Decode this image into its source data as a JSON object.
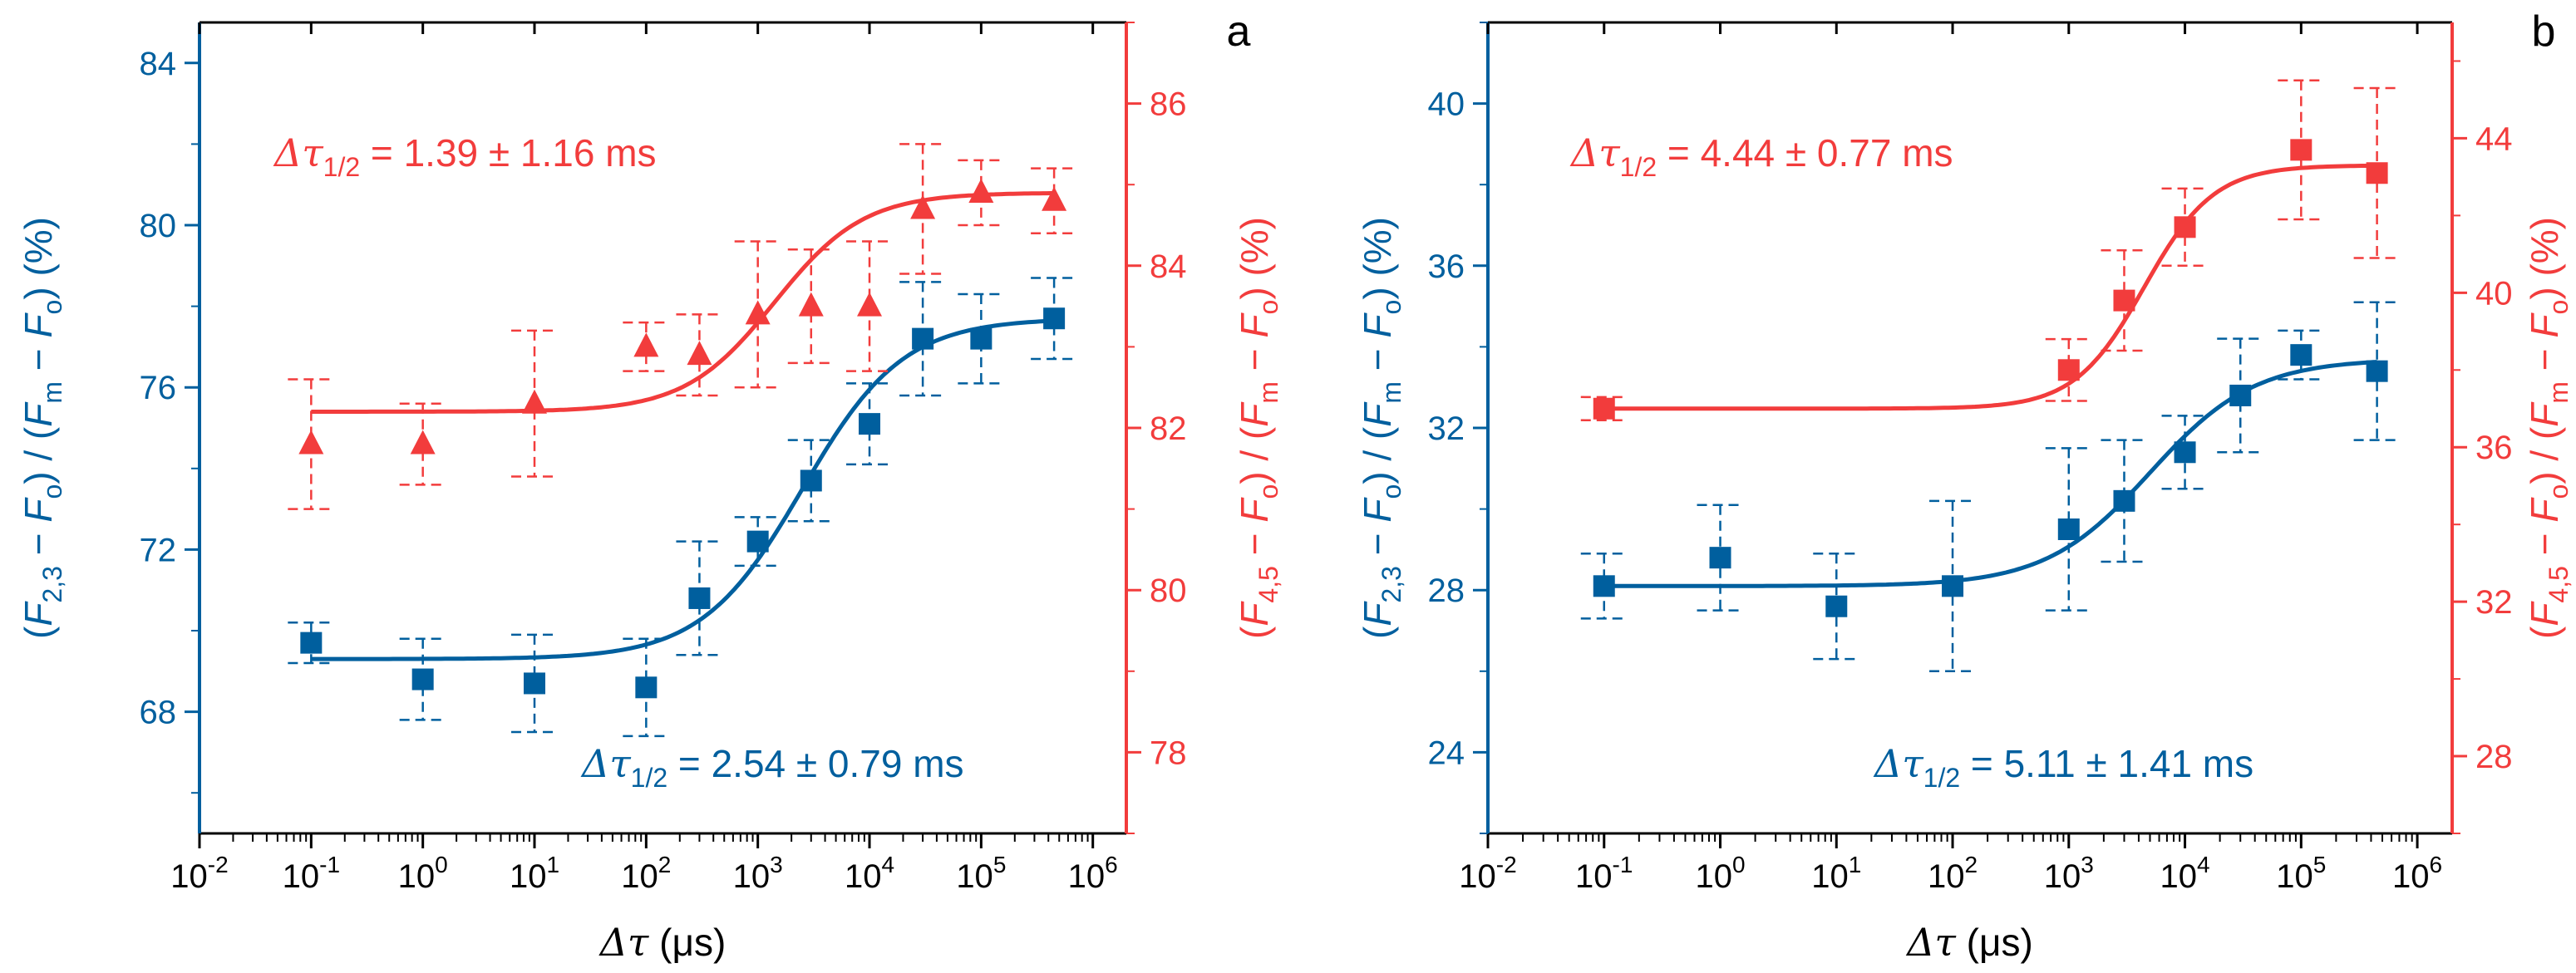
{
  "colors": {
    "blue": "#005f9e",
    "red": "#f23c3c",
    "black": "#000000"
  },
  "x_tick_labels": [
    {
      "base": "10",
      "exp": "-2"
    },
    {
      "base": "10",
      "exp": "-1"
    },
    {
      "base": "10",
      "exp": "0"
    },
    {
      "base": "10",
      "exp": "1"
    },
    {
      "base": "10",
      "exp": "2"
    },
    {
      "base": "10",
      "exp": "3"
    },
    {
      "base": "10",
      "exp": "4"
    },
    {
      "base": "10",
      "exp": "5"
    },
    {
      "base": "10",
      "exp": "6"
    }
  ],
  "xlabel": {
    "sym": "Δτ",
    "unit": " (μs)"
  },
  "left_ylabel": {
    "p1": "(",
    "F1": "F",
    "s1": "2,3",
    "p2": " − ",
    "F2": "F",
    "s2": "o",
    "p3": ") / (",
    "F3": "F",
    "s3": "m",
    "p4": " − ",
    "F4": "F",
    "s4": "o",
    "p5": ") (%)"
  },
  "right_ylabel": {
    "p1": "(",
    "F1": "F",
    "s1": "4,5",
    "p2": " − ",
    "F2": "F",
    "s2": "o",
    "p3": ") / (",
    "F3": "F",
    "s3": "m",
    "p4": " − ",
    "F4": "F",
    "s4": "o",
    "p5": ") (%)"
  },
  "chart_data": [
    {
      "panel_label": "a",
      "type": "scatter",
      "x_scale": "log",
      "xlim_log10": [
        -2,
        6.3
      ],
      "left_axis": {
        "ylim": [
          65,
          85
        ],
        "ticks": [
          "68",
          "72",
          "76",
          "80",
          "84"
        ]
      },
      "right_axis": {
        "ylim": [
          77,
          87
        ],
        "ticks": [
          "78",
          "80",
          "82",
          "84",
          "86"
        ]
      },
      "annotations": {
        "red": {
          "sym": "Δτ",
          "sub": "1/2",
          "text": " = 1.39 ± 1.16 ms"
        },
        "blue": {
          "sym": "Δτ",
          "sub": "1/2",
          "text": " = 2.54 ± 0.79 ms"
        }
      },
      "series": [
        {
          "name": "F2,3",
          "axis": "left",
          "color": "blue",
          "marker": "square",
          "x": [
            0.1,
            1,
            10,
            100,
            300,
            1000,
            3000,
            10000,
            30000,
            100000,
            450000
          ],
          "y": [
            69.7,
            68.8,
            68.7,
            68.6,
            70.8,
            72.2,
            73.7,
            75.1,
            77.2,
            77.2,
            77.7
          ],
          "yerr": [
            0.5,
            1.0,
            1.2,
            1.2,
            1.4,
            0.6,
            1.0,
            1.0,
            1.4,
            1.1,
            1.0
          ],
          "fit": {
            "bottom": 69.3,
            "top": 77.7,
            "x0_log10": 3.4,
            "width": 0.45
          }
        },
        {
          "name": "F4,5",
          "axis": "right",
          "color": "red",
          "marker": "triangle",
          "x": [
            0.1,
            1,
            10,
            100,
            300,
            1000,
            3000,
            10000,
            30000,
            100000,
            450000
          ],
          "y": [
            81.8,
            81.8,
            82.3,
            83.0,
            82.9,
            83.4,
            83.5,
            83.5,
            84.7,
            84.9,
            84.8
          ],
          "yerr": [
            0.8,
            0.5,
            0.9,
            0.3,
            0.5,
            0.9,
            0.7,
            0.8,
            0.8,
            0.4,
            0.4
          ],
          "fit": {
            "bottom": 82.2,
            "top": 84.9,
            "x0_log10": 3.15,
            "width": 0.4
          }
        }
      ]
    },
    {
      "panel_label": "b",
      "type": "scatter",
      "x_scale": "log",
      "xlim_log10": [
        -2,
        6.3
      ],
      "left_axis": {
        "ylim": [
          22,
          42
        ],
        "ticks": [
          "24",
          "28",
          "32",
          "36",
          "40"
        ]
      },
      "right_axis": {
        "ylim": [
          26,
          47
        ],
        "ticks": [
          "28",
          "32",
          "36",
          "40",
          "44"
        ]
      },
      "annotations": {
        "red": {
          "sym": "Δτ",
          "sub": "1/2",
          "text": " = 4.44 ± 0.77 ms"
        },
        "blue": {
          "sym": "Δτ",
          "sub": "1/2",
          "text": " = 5.11 ± 1.41 ms"
        }
      },
      "series": [
        {
          "name": "F2,3",
          "axis": "left",
          "color": "blue",
          "marker": "square",
          "x": [
            0.1,
            1,
            10,
            100,
            1000,
            3000,
            10000,
            30000,
            100000,
            450000
          ],
          "y": [
            28.1,
            28.8,
            27.6,
            28.1,
            29.5,
            30.2,
            31.4,
            32.8,
            33.8,
            33.4
          ],
          "yerr": [
            0.8,
            1.3,
            1.3,
            2.1,
            2.0,
            1.5,
            0.9,
            1.4,
            0.6,
            1.7
          ],
          "fit": {
            "bottom": 28.1,
            "top": 33.7,
            "x0_log10": 3.7,
            "width": 0.45
          }
        },
        {
          "name": "F4,5",
          "axis": "right",
          "color": "red",
          "marker": "square",
          "x": [
            0.1,
            1000,
            3000,
            10000,
            100000,
            450000
          ],
          "y": [
            37.0,
            38.0,
            39.8,
            41.7,
            43.7,
            43.1
          ],
          "yerr": [
            0.3,
            0.8,
            1.3,
            1.0,
            1.8,
            2.2
          ],
          "fit": {
            "bottom": 37.0,
            "top": 43.3,
            "x0_log10": 3.65,
            "width": 0.3
          }
        }
      ]
    }
  ]
}
